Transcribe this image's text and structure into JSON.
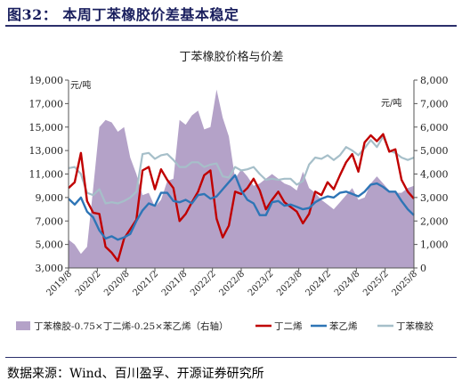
{
  "figure": {
    "title": "图32：  本周丁苯橡胶价差基本稳定",
    "source": "数据来源：Wind、百川盈孚、开源证券研究所"
  },
  "chart_data": {
    "type": "line",
    "title": "丁苯橡胶价格与价差",
    "y_unit_left": "元/吨",
    "y_unit_right": "元/吨",
    "y_left_ticks": [
      "19,000",
      "17,000",
      "15,000",
      "13,000",
      "11,000",
      "9,000",
      "7,000",
      "5,000",
      "3,000"
    ],
    "y_right_ticks": [
      "8,000",
      "7,000",
      "6,000",
      "5,000",
      "4,000",
      "3,000",
      "2,000",
      "1,000",
      "0"
    ],
    "x_ticks": [
      "2019/8",
      "2020/2",
      "2020/8",
      "2021/2",
      "2021/8",
      "2022/2",
      "2022/8",
      "2023/2",
      "2023/8",
      "2024/2",
      "2024/8",
      "2025/2",
      "2025/8"
    ],
    "ylim_left": [
      3000,
      19000
    ],
    "ylim_right": [
      0,
      8000
    ],
    "grid": false,
    "legend_position": "bottom",
    "colors": {
      "spread": "#b4a2c8",
      "butadiene": "#c00000",
      "styrene": "#2e75b6",
      "sbr": "#a6bfc9"
    },
    "series": [
      {
        "name": "丁苯橡胶-0.75×丁二烯-0.25×苯乙烯（右轴）",
        "type": "area",
        "axis": "right",
        "values": [
          1200,
          1000,
          600,
          900,
          3400,
          6000,
          6300,
          6200,
          5800,
          6000,
          4700,
          4000,
          3100,
          3200,
          2600,
          2900,
          3700,
          3800,
          6300,
          6100,
          6500,
          6700,
          5900,
          6000,
          7600,
          6400,
          5600,
          3800,
          4200,
          3900,
          3500,
          3600,
          3800,
          4000,
          3800,
          3600,
          3500,
          3300,
          4100,
          3400,
          3200,
          2900,
          2700,
          2500,
          2800,
          3100,
          3400,
          2900,
          3000,
          3600,
          3900,
          3600,
          3300,
          3200,
          3200,
          3400,
          3500
        ]
      },
      {
        "name": "丁二烯",
        "type": "line",
        "axis": "left",
        "values": [
          9800,
          10300,
          12800,
          8700,
          7700,
          7600,
          4800,
          4300,
          3600,
          5500,
          6300,
          7100,
          11300,
          11600,
          9700,
          11400,
          10500,
          9800,
          7000,
          7600,
          8600,
          9500,
          10900,
          11300,
          7200,
          5600,
          6600,
          9500,
          9300,
          9800,
          10600,
          9600,
          8000,
          8800,
          9500,
          8600,
          8200,
          7800,
          6800,
          7600,
          9500,
          9200,
          10300,
          9700,
          10900,
          12000,
          12700,
          11200,
          13700,
          14300,
          13800,
          14400,
          12900,
          13100,
          10500,
          9500,
          8900
        ]
      },
      {
        "name": "苯乙烯",
        "type": "line",
        "axis": "left",
        "values": [
          8900,
          8400,
          9000,
          7800,
          7300,
          6200,
          5500,
          5700,
          5400,
          5600,
          5900,
          7000,
          7900,
          8500,
          8300,
          9400,
          9400,
          8700,
          8600,
          8800,
          8500,
          9200,
          9300,
          8900,
          9100,
          9700,
          10300,
          10900,
          9600,
          8800,
          8500,
          7500,
          7500,
          8600,
          8700,
          8300,
          8400,
          8200,
          8000,
          8100,
          8600,
          8900,
          9100,
          9000,
          9400,
          9500,
          9300,
          9100,
          9500,
          10100,
          10200,
          9900,
          9500,
          9500,
          8700,
          8000,
          7500
        ]
      },
      {
        "name": "丁苯橡胶",
        "type": "line",
        "axis": "left",
        "values": [
          11500,
          11600,
          11000,
          9400,
          9200,
          9700,
          8500,
          8600,
          8500,
          8700,
          9000,
          9500,
          12700,
          12800,
          12300,
          12600,
          12700,
          12200,
          11600,
          11600,
          12000,
          12000,
          11600,
          11800,
          11900,
          10800,
          10700,
          11600,
          11300,
          11400,
          11600,
          11000,
          10500,
          10600,
          10500,
          10600,
          10600,
          10100,
          10400,
          11800,
          12400,
          12300,
          12600,
          12200,
          12600,
          13300,
          13000,
          12600,
          13200,
          13900,
          13300,
          14200,
          13000,
          12800,
          12400,
          12200,
          12400
        ]
      }
    ]
  }
}
